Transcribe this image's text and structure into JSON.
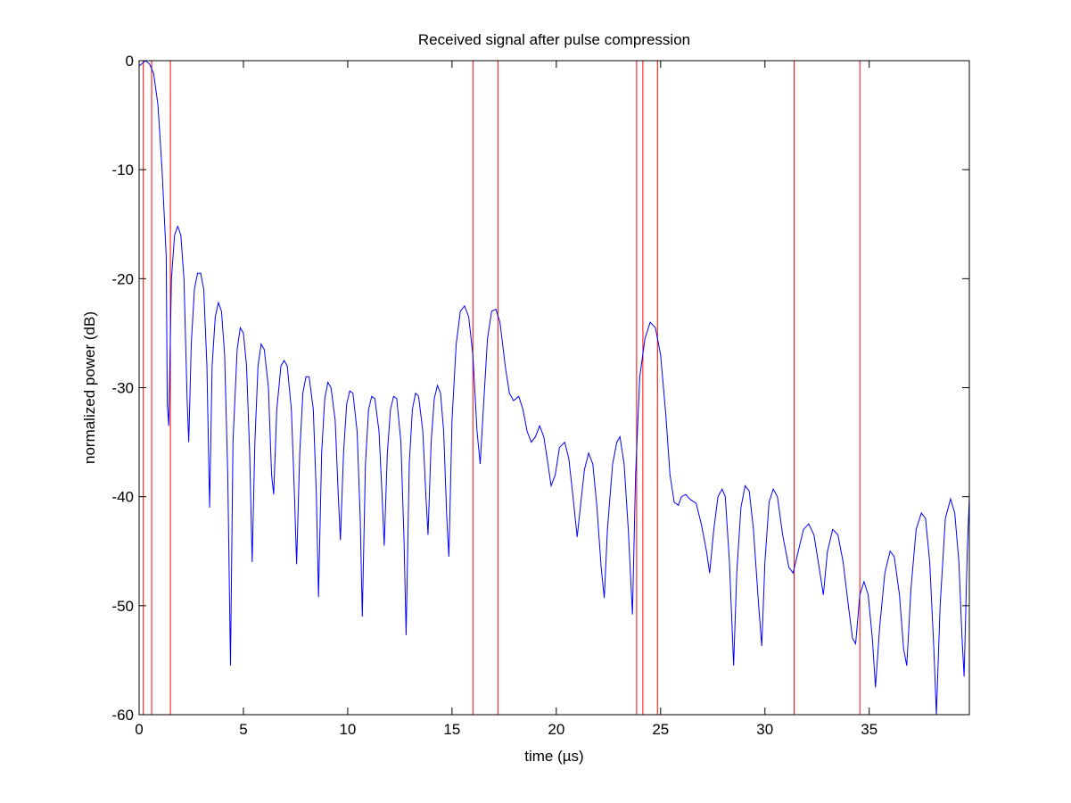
{
  "chart_data": {
    "type": "line",
    "title": "Received signal after pulse compression",
    "xlabel": "time (µs)",
    "ylabel": "normalized power (dB)",
    "xlim": [
      0,
      39.8
    ],
    "ylim": [
      -60,
      0
    ],
    "xticks": [
      0,
      5,
      10,
      15,
      20,
      25,
      30,
      35
    ],
    "yticks": [
      0,
      -10,
      -20,
      -30,
      -40,
      -50,
      -60
    ],
    "grid": false,
    "legend": "none",
    "series": [
      {
        "color": "#0000ff",
        "points": [
          [
            0.0,
            -0.5
          ],
          [
            0.3,
            0.0
          ],
          [
            0.5,
            -0.3
          ],
          [
            0.7,
            -1.2
          ],
          [
            0.9,
            -4.0
          ],
          [
            1.1,
            -10.0
          ],
          [
            1.3,
            -18.0
          ],
          [
            1.35,
            -31.5
          ],
          [
            1.42,
            -33.5
          ],
          [
            1.55,
            -20.0
          ],
          [
            1.7,
            -16.0
          ],
          [
            1.85,
            -15.2
          ],
          [
            2.0,
            -16.0
          ],
          [
            2.15,
            -20.0
          ],
          [
            2.3,
            -31.0
          ],
          [
            2.38,
            -35.0
          ],
          [
            2.5,
            -26.0
          ],
          [
            2.65,
            -21.0
          ],
          [
            2.8,
            -19.5
          ],
          [
            2.95,
            -19.5
          ],
          [
            3.1,
            -21.0
          ],
          [
            3.25,
            -28.0
          ],
          [
            3.38,
            -41.0
          ],
          [
            3.5,
            -28.0
          ],
          [
            3.65,
            -23.5
          ],
          [
            3.8,
            -22.2
          ],
          [
            3.95,
            -23.0
          ],
          [
            4.1,
            -27.0
          ],
          [
            4.25,
            -38.0
          ],
          [
            4.38,
            -55.5
          ],
          [
            4.5,
            -35.0
          ],
          [
            4.7,
            -26.5
          ],
          [
            4.85,
            -24.5
          ],
          [
            5.0,
            -25.0
          ],
          [
            5.15,
            -28.0
          ],
          [
            5.3,
            -36.0
          ],
          [
            5.42,
            -46.0
          ],
          [
            5.55,
            -35.0
          ],
          [
            5.7,
            -28.0
          ],
          [
            5.85,
            -26.0
          ],
          [
            6.0,
            -26.5
          ],
          [
            6.2,
            -30.0
          ],
          [
            6.35,
            -38.0
          ],
          [
            6.45,
            -39.8
          ],
          [
            6.6,
            -32.0
          ],
          [
            6.8,
            -28.0
          ],
          [
            6.95,
            -27.5
          ],
          [
            7.1,
            -28.0
          ],
          [
            7.3,
            -32.0
          ],
          [
            7.45,
            -40.0
          ],
          [
            7.55,
            -46.2
          ],
          [
            7.7,
            -36.0
          ],
          [
            7.85,
            -30.5
          ],
          [
            8.0,
            -29.0
          ],
          [
            8.15,
            -29.0
          ],
          [
            8.35,
            -32.0
          ],
          [
            8.5,
            -40.0
          ],
          [
            8.6,
            -49.2
          ],
          [
            8.75,
            -36.0
          ],
          [
            8.9,
            -31.0
          ],
          [
            9.05,
            -29.5
          ],
          [
            9.2,
            -30.0
          ],
          [
            9.4,
            -33.0
          ],
          [
            9.55,
            -40.0
          ],
          [
            9.65,
            -44.0
          ],
          [
            9.8,
            -36.0
          ],
          [
            9.95,
            -31.5
          ],
          [
            10.1,
            -30.3
          ],
          [
            10.25,
            -30.5
          ],
          [
            10.45,
            -34.0
          ],
          [
            10.6,
            -42.0
          ],
          [
            10.7,
            -51.0
          ],
          [
            10.85,
            -37.0
          ],
          [
            11.0,
            -32.0
          ],
          [
            11.15,
            -30.8
          ],
          [
            11.3,
            -31.0
          ],
          [
            11.5,
            -34.0
          ],
          [
            11.65,
            -40.0
          ],
          [
            11.75,
            -44.5
          ],
          [
            11.9,
            -36.0
          ],
          [
            12.05,
            -32.0
          ],
          [
            12.2,
            -30.8
          ],
          [
            12.35,
            -31.0
          ],
          [
            12.55,
            -35.0
          ],
          [
            12.7,
            -44.0
          ],
          [
            12.8,
            -52.7
          ],
          [
            12.95,
            -37.0
          ],
          [
            13.1,
            -32.0
          ],
          [
            13.25,
            -30.5
          ],
          [
            13.4,
            -30.8
          ],
          [
            13.6,
            -34.0
          ],
          [
            13.75,
            -40.0
          ],
          [
            13.85,
            -43.5
          ],
          [
            14.0,
            -35.0
          ],
          [
            14.15,
            -31.0
          ],
          [
            14.3,
            -29.8
          ],
          [
            14.45,
            -30.5
          ],
          [
            14.6,
            -34.0
          ],
          [
            14.75,
            -42.0
          ],
          [
            14.85,
            -45.5
          ],
          [
            15.0,
            -33.0
          ],
          [
            15.2,
            -26.0
          ],
          [
            15.4,
            -23.0
          ],
          [
            15.6,
            -22.5
          ],
          [
            15.8,
            -23.5
          ],
          [
            16.0,
            -27.0
          ],
          [
            16.2,
            -34.0
          ],
          [
            16.35,
            -37.0
          ],
          [
            16.5,
            -32.0
          ],
          [
            16.7,
            -25.5
          ],
          [
            16.9,
            -23.0
          ],
          [
            17.1,
            -22.8
          ],
          [
            17.3,
            -24.0
          ],
          [
            17.55,
            -28.0
          ],
          [
            17.75,
            -30.5
          ],
          [
            17.95,
            -31.2
          ],
          [
            18.2,
            -30.8
          ],
          [
            18.4,
            -32.0
          ],
          [
            18.6,
            -34.0
          ],
          [
            18.8,
            -35.0
          ],
          [
            19.0,
            -34.5
          ],
          [
            19.2,
            -33.5
          ],
          [
            19.4,
            -34.5
          ],
          [
            19.6,
            -37.0
          ],
          [
            19.75,
            -39.0
          ],
          [
            19.95,
            -38.0
          ],
          [
            20.15,
            -35.5
          ],
          [
            20.4,
            -35.0
          ],
          [
            20.6,
            -36.5
          ],
          [
            20.8,
            -40.0
          ],
          [
            21.0,
            -43.7
          ],
          [
            21.15,
            -41.0
          ],
          [
            21.35,
            -37.5
          ],
          [
            21.55,
            -36.0
          ],
          [
            21.75,
            -37.0
          ],
          [
            21.95,
            -41.0
          ],
          [
            22.15,
            -46.5
          ],
          [
            22.3,
            -49.3
          ],
          [
            22.45,
            -43.0
          ],
          [
            22.7,
            -37.0
          ],
          [
            22.9,
            -35.0
          ],
          [
            23.05,
            -34.5
          ],
          [
            23.25,
            -37.0
          ],
          [
            23.45,
            -43.0
          ],
          [
            23.65,
            -50.8
          ],
          [
            23.8,
            -38.0
          ],
          [
            24.0,
            -29.0
          ],
          [
            24.25,
            -25.5
          ],
          [
            24.5,
            -24.0
          ],
          [
            24.75,
            -24.5
          ],
          [
            25.0,
            -27.0
          ],
          [
            25.25,
            -32.5
          ],
          [
            25.45,
            -38.0
          ],
          [
            25.65,
            -40.5
          ],
          [
            25.85,
            -40.8
          ],
          [
            26.0,
            -40.0
          ],
          [
            26.2,
            -39.8
          ],
          [
            26.45,
            -40.3
          ],
          [
            26.7,
            -40.6
          ],
          [
            26.95,
            -42.5
          ],
          [
            27.2,
            -45.0
          ],
          [
            27.35,
            -47.0
          ],
          [
            27.55,
            -43.0
          ],
          [
            27.75,
            -40.0
          ],
          [
            27.95,
            -39.3
          ],
          [
            28.1,
            -40.0
          ],
          [
            28.3,
            -46.0
          ],
          [
            28.5,
            -55.5
          ],
          [
            28.65,
            -47.0
          ],
          [
            28.85,
            -41.0
          ],
          [
            29.05,
            -39.0
          ],
          [
            29.25,
            -39.5
          ],
          [
            29.45,
            -43.0
          ],
          [
            29.7,
            -50.0
          ],
          [
            29.85,
            -53.7
          ],
          [
            30.0,
            -46.0
          ],
          [
            30.2,
            -40.5
          ],
          [
            30.4,
            -39.3
          ],
          [
            30.6,
            -40.0
          ],
          [
            30.85,
            -43.5
          ],
          [
            31.15,
            -46.5
          ],
          [
            31.35,
            -47.0
          ],
          [
            31.6,
            -45.0
          ],
          [
            31.85,
            -43.0
          ],
          [
            32.1,
            -42.5
          ],
          [
            32.35,
            -43.5
          ],
          [
            32.6,
            -46.5
          ],
          [
            32.8,
            -49.0
          ],
          [
            33.0,
            -45.0
          ],
          [
            33.25,
            -43.0
          ],
          [
            33.5,
            -43.5
          ],
          [
            33.75,
            -46.0
          ],
          [
            34.0,
            -50.0
          ],
          [
            34.2,
            -53.0
          ],
          [
            34.35,
            -53.5
          ],
          [
            34.55,
            -49.0
          ],
          [
            34.75,
            -47.8
          ],
          [
            34.95,
            -49.0
          ],
          [
            35.15,
            -53.0
          ],
          [
            35.3,
            -57.5
          ],
          [
            35.5,
            -52.0
          ],
          [
            35.75,
            -47.0
          ],
          [
            36.0,
            -45.0
          ],
          [
            36.2,
            -45.5
          ],
          [
            36.45,
            -49.0
          ],
          [
            36.65,
            -54.0
          ],
          [
            36.8,
            -55.5
          ],
          [
            37.0,
            -48.5
          ],
          [
            37.25,
            -43.0
          ],
          [
            37.5,
            -41.5
          ],
          [
            37.7,
            -42.0
          ],
          [
            37.9,
            -46.0
          ],
          [
            38.1,
            -54.0
          ],
          [
            38.22,
            -60.0
          ],
          [
            38.4,
            -50.0
          ],
          [
            38.65,
            -42.0
          ],
          [
            38.9,
            -40.2
          ],
          [
            39.1,
            -41.5
          ],
          [
            39.3,
            -46.0
          ],
          [
            39.45,
            -53.0
          ],
          [
            39.55,
            -56.5
          ],
          [
            39.7,
            -45.0
          ],
          [
            39.8,
            -40.0
          ]
        ]
      }
    ],
    "vertical_lines": {
      "color": "#ff0000",
      "x": [
        0.2,
        0.6,
        1.5,
        16.0,
        17.2,
        23.85,
        24.15,
        24.85,
        31.4,
        34.55
      ]
    }
  }
}
